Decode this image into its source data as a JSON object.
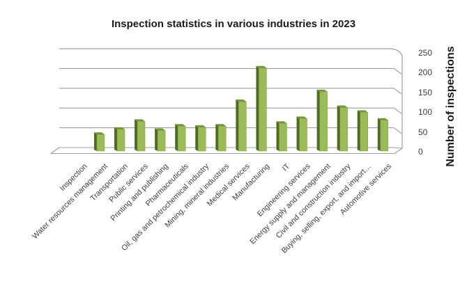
{
  "chart_data": {
    "type": "bar",
    "style": "3d-column",
    "title": "Inspection statistics in various industries in 2023",
    "xlabel": "",
    "ylabel": "Number of inspections",
    "categories": [
      "Inspection",
      "Water resources management",
      "Transportation",
      "Public services",
      "Printing and publishing",
      "Pharmaceuticals",
      "Oil, gas and petrochemical industry",
      "Mining, mineral industries",
      "Medical services",
      "Manufacturing",
      "IT",
      "Engineering services",
      "Energy supply and management",
      "Civil and construction industry",
      "Buying, selling, export, and import…",
      "Automotive services"
    ],
    "values": [
      0,
      42,
      55,
      75,
      52,
      63,
      60,
      63,
      125,
      210,
      70,
      82,
      150,
      110,
      98,
      78
    ],
    "yticks": [
      0,
      50,
      100,
      150,
      200,
      250
    ],
    "ylim": [
      0,
      250
    ],
    "grid": true,
    "legend": false,
    "colors": {
      "bar_front": "#9BBB59",
      "bar_side": "#4E6B22",
      "bar_top": "#77933B",
      "gridline": "#9C9C9C",
      "tick_text": "#3D3D3D",
      "title_text": "#1A1A1A",
      "background": "#FFFFFF"
    }
  }
}
